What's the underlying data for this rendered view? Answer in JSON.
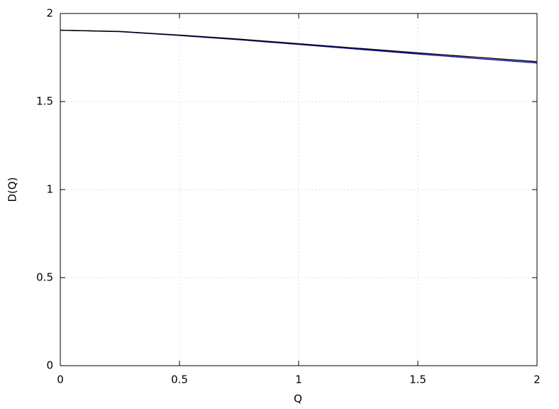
{
  "chart_data": {
    "type": "line",
    "x_label": "Q",
    "y_label": "D(Q)",
    "x": [
      0,
      0.25,
      0.5,
      0.75,
      1,
      1.25,
      1.5,
      1.75,
      2
    ],
    "series": [
      {
        "color": "#8fa800",
        "values": [
          1.905,
          1.898,
          1.878,
          1.855,
          1.829,
          1.803,
          1.777,
          1.752,
          1.727
        ]
      },
      {
        "color": "#0000cc",
        "values": [
          1.905,
          1.897,
          1.875,
          1.851,
          1.824,
          1.797,
          1.77,
          1.744,
          1.719
        ]
      },
      {
        "color": "#000000",
        "values": [
          1.905,
          1.898,
          1.877,
          1.854,
          1.828,
          1.802,
          1.776,
          1.751,
          1.726
        ]
      }
    ],
    "xlim": [
      0,
      2
    ],
    "ylim": [
      0,
      2
    ],
    "xticks": [
      0,
      0.5,
      1,
      1.5,
      2
    ],
    "yticks": [
      0,
      0.5,
      1,
      1.5,
      2
    ],
    "grid": true
  }
}
